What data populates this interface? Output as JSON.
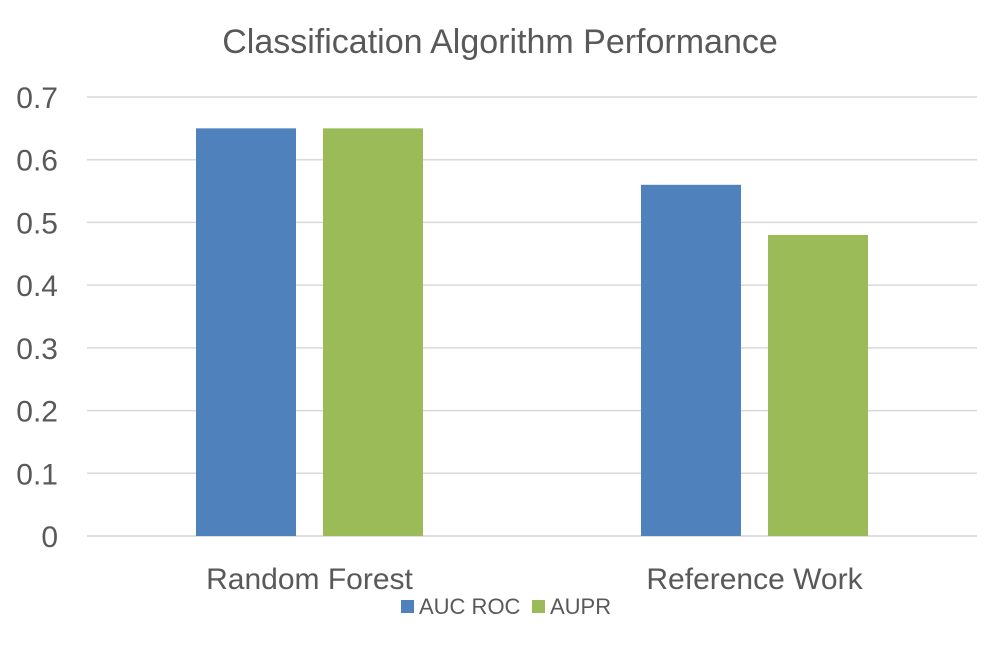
{
  "chart_data": {
    "type": "bar",
    "title": "Classification Algorithm Performance",
    "xlabel": "",
    "ylabel": "",
    "categories": [
      "Random Forest",
      "Reference Work"
    ],
    "series": [
      {
        "name": "AUC ROC",
        "values": [
          0.65,
          0.56
        ],
        "color": "#4F81BD"
      },
      {
        "name": "AUPR",
        "values": [
          0.65,
          0.48
        ],
        "color": "#9BBB59"
      }
    ],
    "ylim": [
      0,
      0.7
    ],
    "yticks": [
      "0",
      "0.1",
      "0.2",
      "0.3",
      "0.4",
      "0.5",
      "0.6",
      "0.7"
    ],
    "grid": true,
    "legend": "bottom",
    "colors": {
      "text": "#595959",
      "grid": "#D9D9D9"
    }
  }
}
